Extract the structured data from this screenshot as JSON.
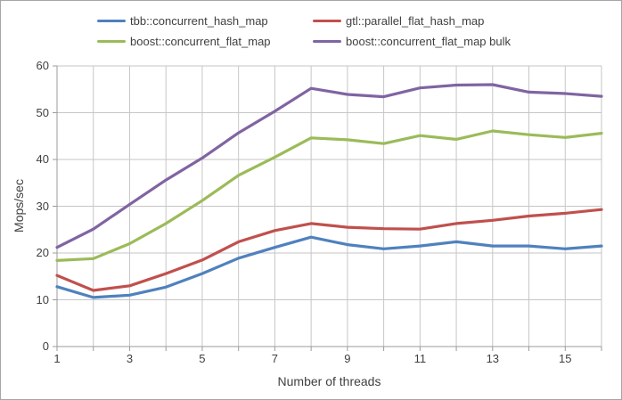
{
  "chart_data": {
    "type": "line",
    "title": "",
    "xlabel": "Number of threads",
    "ylabel": "Mops/sec",
    "xlim": [
      1,
      16
    ],
    "ylim": [
      0,
      60
    ],
    "x": [
      1,
      2,
      3,
      4,
      5,
      6,
      7,
      8,
      9,
      10,
      11,
      12,
      13,
      14,
      15,
      16
    ],
    "y_ticks": [
      0,
      10,
      20,
      30,
      40,
      50,
      60
    ],
    "x_tick_labels": [
      "1",
      "3",
      "5",
      "7",
      "9",
      "11",
      "13",
      "15"
    ],
    "x_tick_values": [
      1,
      3,
      5,
      7,
      9,
      11,
      13,
      15
    ],
    "grid": true,
    "legend_position": "top",
    "series": [
      {
        "name": "tbb::concurrent_hash_map",
        "color": "#4F81BD",
        "values": [
          12.8,
          10.5,
          11.0,
          12.7,
          15.6,
          18.9,
          21.2,
          23.4,
          21.8,
          20.9,
          21.5,
          22.4,
          21.5,
          21.5,
          20.9,
          21.5
        ]
      },
      {
        "name": "gtl::parallel_flat_hash_map",
        "color": "#C0504D",
        "values": [
          15.2,
          12.0,
          13.0,
          15.6,
          18.5,
          22.4,
          24.8,
          26.3,
          25.5,
          25.2,
          25.1,
          26.3,
          27.0,
          27.9,
          28.5,
          29.3
        ]
      },
      {
        "name": "boost::concurrent_flat_map",
        "color": "#9BBB59",
        "values": [
          18.4,
          18.8,
          22.0,
          26.3,
          31.2,
          36.6,
          40.5,
          44.6,
          44.2,
          43.4,
          45.1,
          44.3,
          46.1,
          45.3,
          44.7,
          45.6
        ]
      },
      {
        "name": "boost::concurrent_flat_map bulk",
        "color": "#8064A2",
        "values": [
          21.2,
          25.1,
          30.4,
          35.6,
          40.3,
          45.7,
          50.3,
          55.2,
          53.9,
          53.4,
          55.3,
          55.9,
          56.0,
          54.4,
          54.1,
          53.5
        ]
      }
    ],
    "colors": {
      "gridline": "#C6C6C6",
      "axis": "#9B9B9B",
      "text": "#3F3F3F",
      "frame_border": "#A6A6A6",
      "background": "#FFFFFF"
    }
  }
}
